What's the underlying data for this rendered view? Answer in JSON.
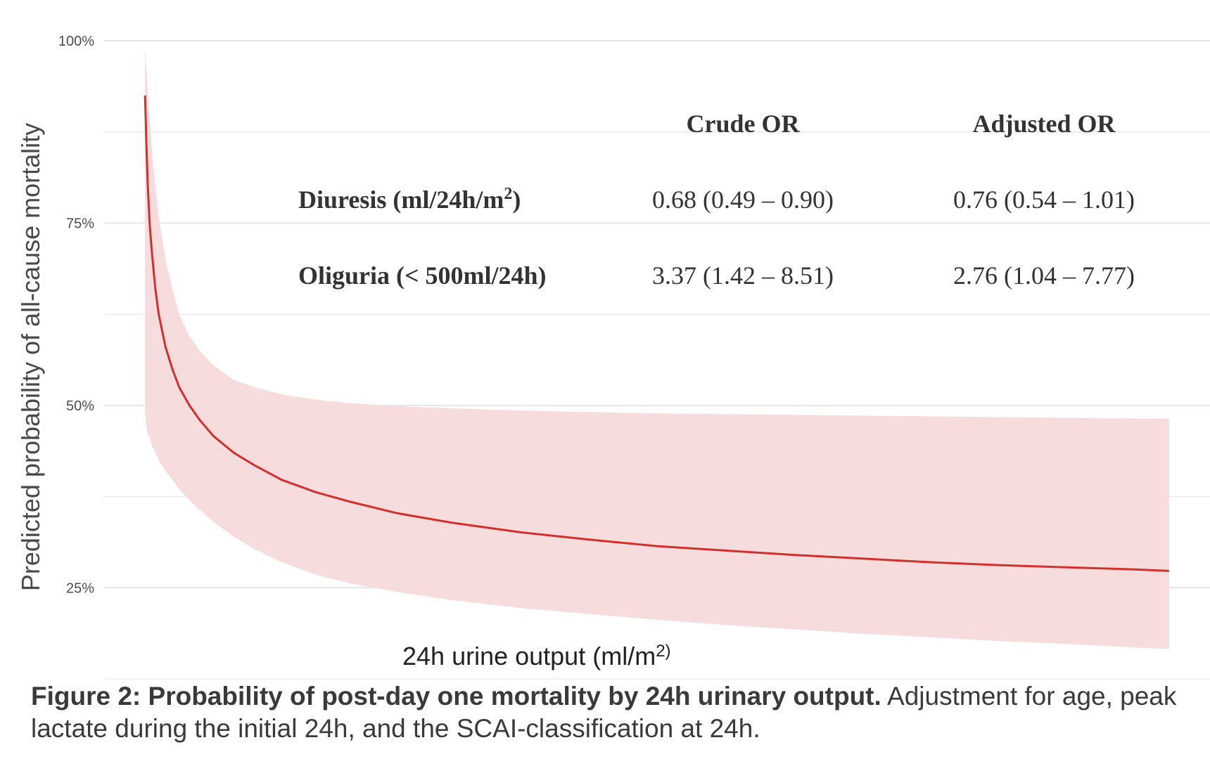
{
  "chart_data": {
    "type": "line",
    "title": "",
    "xlabel": "24h urine output (ml/m2)",
    "ylabel": "Predicted probability of all-cause mortality",
    "yticks": [
      "25%",
      "50%",
      "75%",
      "100%"
    ],
    "ylim": [
      0.125,
      1.0
    ],
    "grid": true,
    "colors": {
      "line": "#d2302c",
      "band": "#f6dcdc",
      "grid": "#e6e6e6"
    },
    "series": [
      {
        "x": [
          0,
          2,
          4,
          7,
          10,
          15,
          20,
          30,
          40,
          50,
          65,
          80,
          100,
          130,
          160,
          200,
          250,
          300,
          370,
          450,
          550,
          650,
          750,
          850,
          950,
          1050,
          1150,
          1250,
          1350,
          1450,
          1500
        ],
        "y": [
          0.925,
          0.855,
          0.8,
          0.745,
          0.71,
          0.66,
          0.625,
          0.58,
          0.55,
          0.525,
          0.5,
          0.48,
          0.458,
          0.435,
          0.418,
          0.398,
          0.381,
          0.368,
          0.352,
          0.339,
          0.326,
          0.316,
          0.307,
          0.301,
          0.295,
          0.29,
          0.285,
          0.281,
          0.278,
          0.275,
          0.273
        ],
        "ci_upper": [
          0.99,
          0.96,
          0.93,
          0.89,
          0.85,
          0.8,
          0.76,
          0.7,
          0.66,
          0.625,
          0.595,
          0.575,
          0.555,
          0.535,
          0.525,
          0.515,
          0.508,
          0.503,
          0.499,
          0.496,
          0.493,
          0.491,
          0.489,
          0.488,
          0.487,
          0.486,
          0.485,
          0.484,
          0.483,
          0.482,
          0.482
        ],
        "ci_lower": [
          0.49,
          0.47,
          0.46,
          0.455,
          0.445,
          0.435,
          0.425,
          0.41,
          0.398,
          0.385,
          0.37,
          0.357,
          0.34,
          0.32,
          0.303,
          0.285,
          0.268,
          0.256,
          0.244,
          0.233,
          0.222,
          0.214,
          0.206,
          0.199,
          0.193,
          0.187,
          0.182,
          0.177,
          0.173,
          0.168,
          0.166
        ]
      }
    ],
    "xlim": [
      -60,
      1560
    ]
  },
  "inset_table": {
    "headers": [
      "Crude OR",
      "Adjusted OR"
    ],
    "rows": [
      {
        "label": "Diuresis (ml/24h/m",
        "sup": "2",
        "label_end": ")",
        "crude": "0.68 (0.49 – 0.90)",
        "adjusted": "0.76 (0.54 – 1.01)"
      },
      {
        "label": "Oliguria (< 500ml/24h)",
        "sup": "",
        "label_end": "",
        "crude": "3.37 (1.42 – 8.51)",
        "adjusted": "2.76 (1.04 – 7.77)"
      }
    ]
  },
  "xlabel_parts": {
    "main": "24h urine output (ml/m",
    "sup": "2)"
  },
  "caption": {
    "bold": "Figure 2: Probability of post-day one mortality by 24h urinary output.",
    "rest": " Adjustment for age, peak lactate during the initial 24h, and the SCAI-classification at 24h."
  }
}
